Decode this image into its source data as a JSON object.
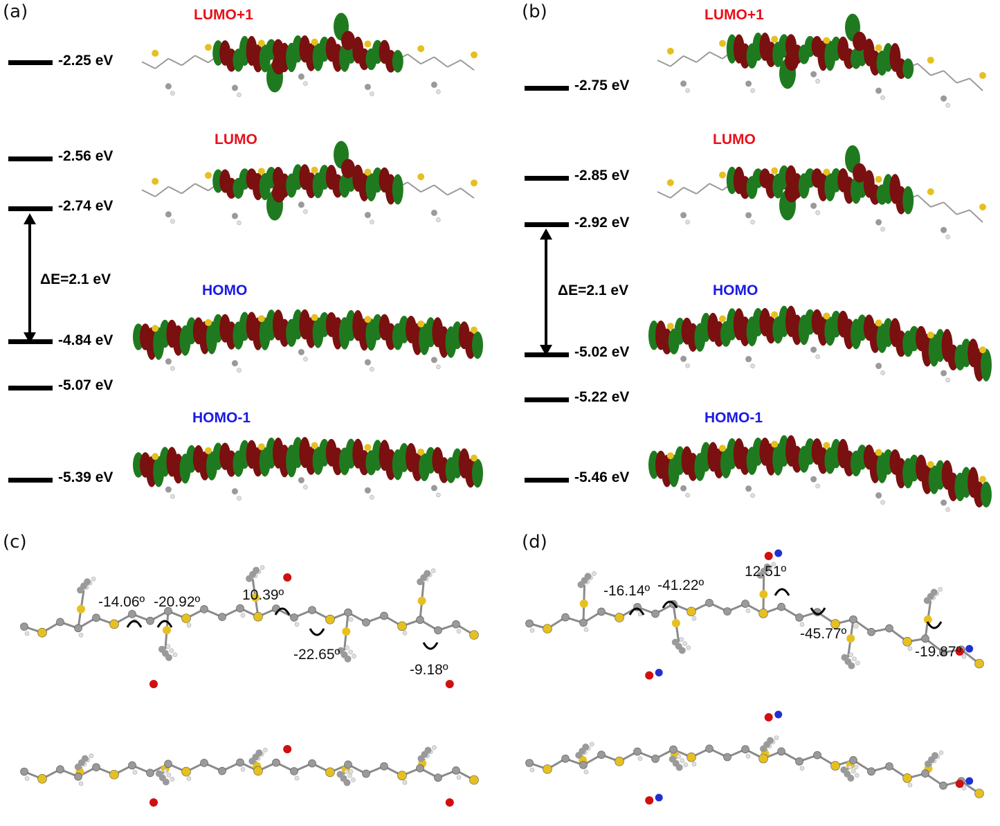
{
  "panels": {
    "a": {
      "label": "(a)",
      "levels": [
        {
          "name": "LUMO+1 level",
          "energy": "-2.25 eV"
        },
        {
          "name": "LUMO level",
          "energy": "-2.56 eV"
        },
        {
          "name": "LUMO-lowest level",
          "energy": "-2.74 eV"
        },
        {
          "name": "HOMO level",
          "energy": "-4.84 eV"
        },
        {
          "name": "HOMO-lower level",
          "energy": "-5.07 eV"
        },
        {
          "name": "HOMO-1 level",
          "energy": "-5.39 eV"
        }
      ],
      "gap": "ΔE=2.1 eV",
      "orbitals": [
        "LUMO+1",
        "LUMO",
        "HOMO",
        "HOMO-1"
      ]
    },
    "b": {
      "label": "(b)",
      "levels": [
        {
          "name": "LUMO+1 level",
          "energy": "-2.75 eV"
        },
        {
          "name": "LUMO level",
          "energy": "-2.85 eV"
        },
        {
          "name": "LUMO-lowest level",
          "energy": "-2.92 eV"
        },
        {
          "name": "HOMO level",
          "energy": "-5.02 eV"
        },
        {
          "name": "HOMO-lower level",
          "energy": "-5.22 eV"
        },
        {
          "name": "HOMO-1 level",
          "energy": "-5.46 eV"
        }
      ],
      "gap": "ΔE=2.1 eV",
      "orbitals": [
        "LUMO+1",
        "LUMO",
        "HOMO",
        "HOMO-1"
      ]
    },
    "c": {
      "label": "(c)",
      "angles": [
        "-14.06º",
        "-20.92º",
        "10.39º",
        "-22.65º",
        "-9.18º"
      ]
    },
    "d": {
      "label": "(d)",
      "angles": [
        "-16.14º",
        "-41.22º",
        "12.51º",
        "-45.77º",
        "-19.87º"
      ]
    }
  },
  "colors": {
    "lumo_title": "#e8101a",
    "homo_title": "#1a1ae6",
    "lobe_red": "#7a1010",
    "lobe_green": "#1f7a1f",
    "carbon": "#9a9a9a",
    "sulfur": "#e6c020",
    "oxygen": "#d01010",
    "nitrogen": "#2030d0",
    "hydrogen": "#e0e0e0"
  }
}
